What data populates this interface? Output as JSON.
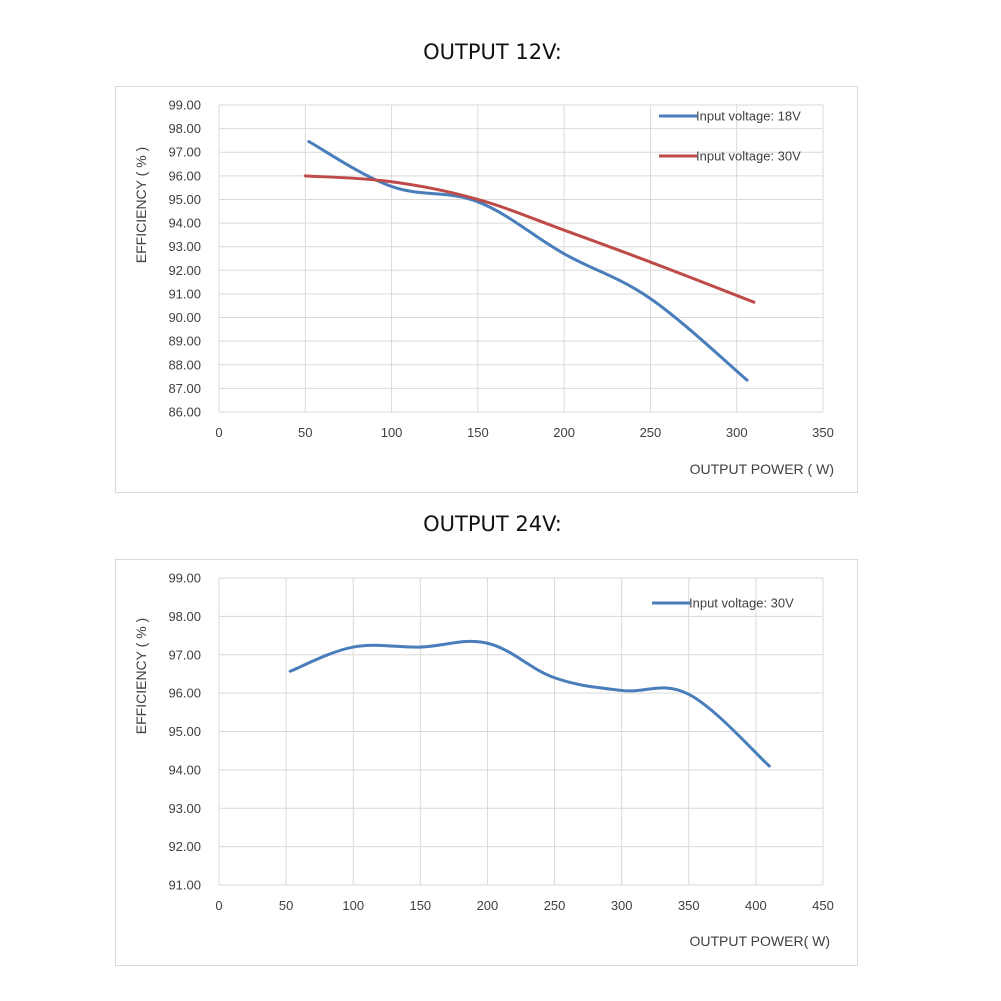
{
  "chart_data": [
    {
      "type": "line",
      "title": "OUTPUT 12V:",
      "xlabel": "OUTPUT POWER ( W)",
      "ylabel": "EFFICIENCY ( % )",
      "xlim": [
        0,
        350
      ],
      "ylim": [
        86,
        99
      ],
      "x_ticks": [
        "0",
        "50",
        "100",
        "150",
        "200",
        "250",
        "300",
        "350"
      ],
      "y_ticks": [
        "86.00",
        "87.00",
        "88.00",
        "89.00",
        "90.00",
        "91.00",
        "92.00",
        "93.00",
        "94.00",
        "95.00",
        "96.00",
        "97.00",
        "98.00",
        "99.00"
      ],
      "grid": true,
      "legend_position": "top-right",
      "series": [
        {
          "name": "Input voltage: 18V",
          "color": "#4a7ebb",
          "x": [
            52,
            100,
            150,
            200,
            250,
            306
          ],
          "y": [
            97.45,
            95.55,
            94.9,
            92.7,
            90.8,
            87.35
          ]
        },
        {
          "name": "Input voltage: 30V",
          "color": "#be4b48",
          "x": [
            50,
            100,
            150,
            200,
            250,
            310
          ],
          "y": [
            96.0,
            95.75,
            95.0,
            93.7,
            92.35,
            90.65
          ]
        }
      ]
    },
    {
      "type": "line",
      "title": "OUTPUT 24V:",
      "xlabel": "OUTPUT POWER( W)",
      "ylabel": "EFFICIENCY ( % )",
      "xlim": [
        0,
        450
      ],
      "ylim": [
        91,
        99
      ],
      "x_ticks": [
        "0",
        "50",
        "100",
        "150",
        "200",
        "250",
        "300",
        "350",
        "400",
        "450"
      ],
      "y_ticks": [
        "91.00",
        "92.00",
        "93.00",
        "94.00",
        "95.00",
        "96.00",
        "97.00",
        "98.00",
        "99.00"
      ],
      "grid": true,
      "legend_position": "top-right",
      "series": [
        {
          "name": "Input voltage: 30V",
          "color": "#4a7ebb",
          "x": [
            53,
            100,
            150,
            200,
            250,
            300,
            350,
            410
          ],
          "y": [
            96.57,
            97.2,
            97.2,
            97.3,
            96.4,
            96.07,
            95.97,
            94.1
          ]
        }
      ]
    }
  ]
}
